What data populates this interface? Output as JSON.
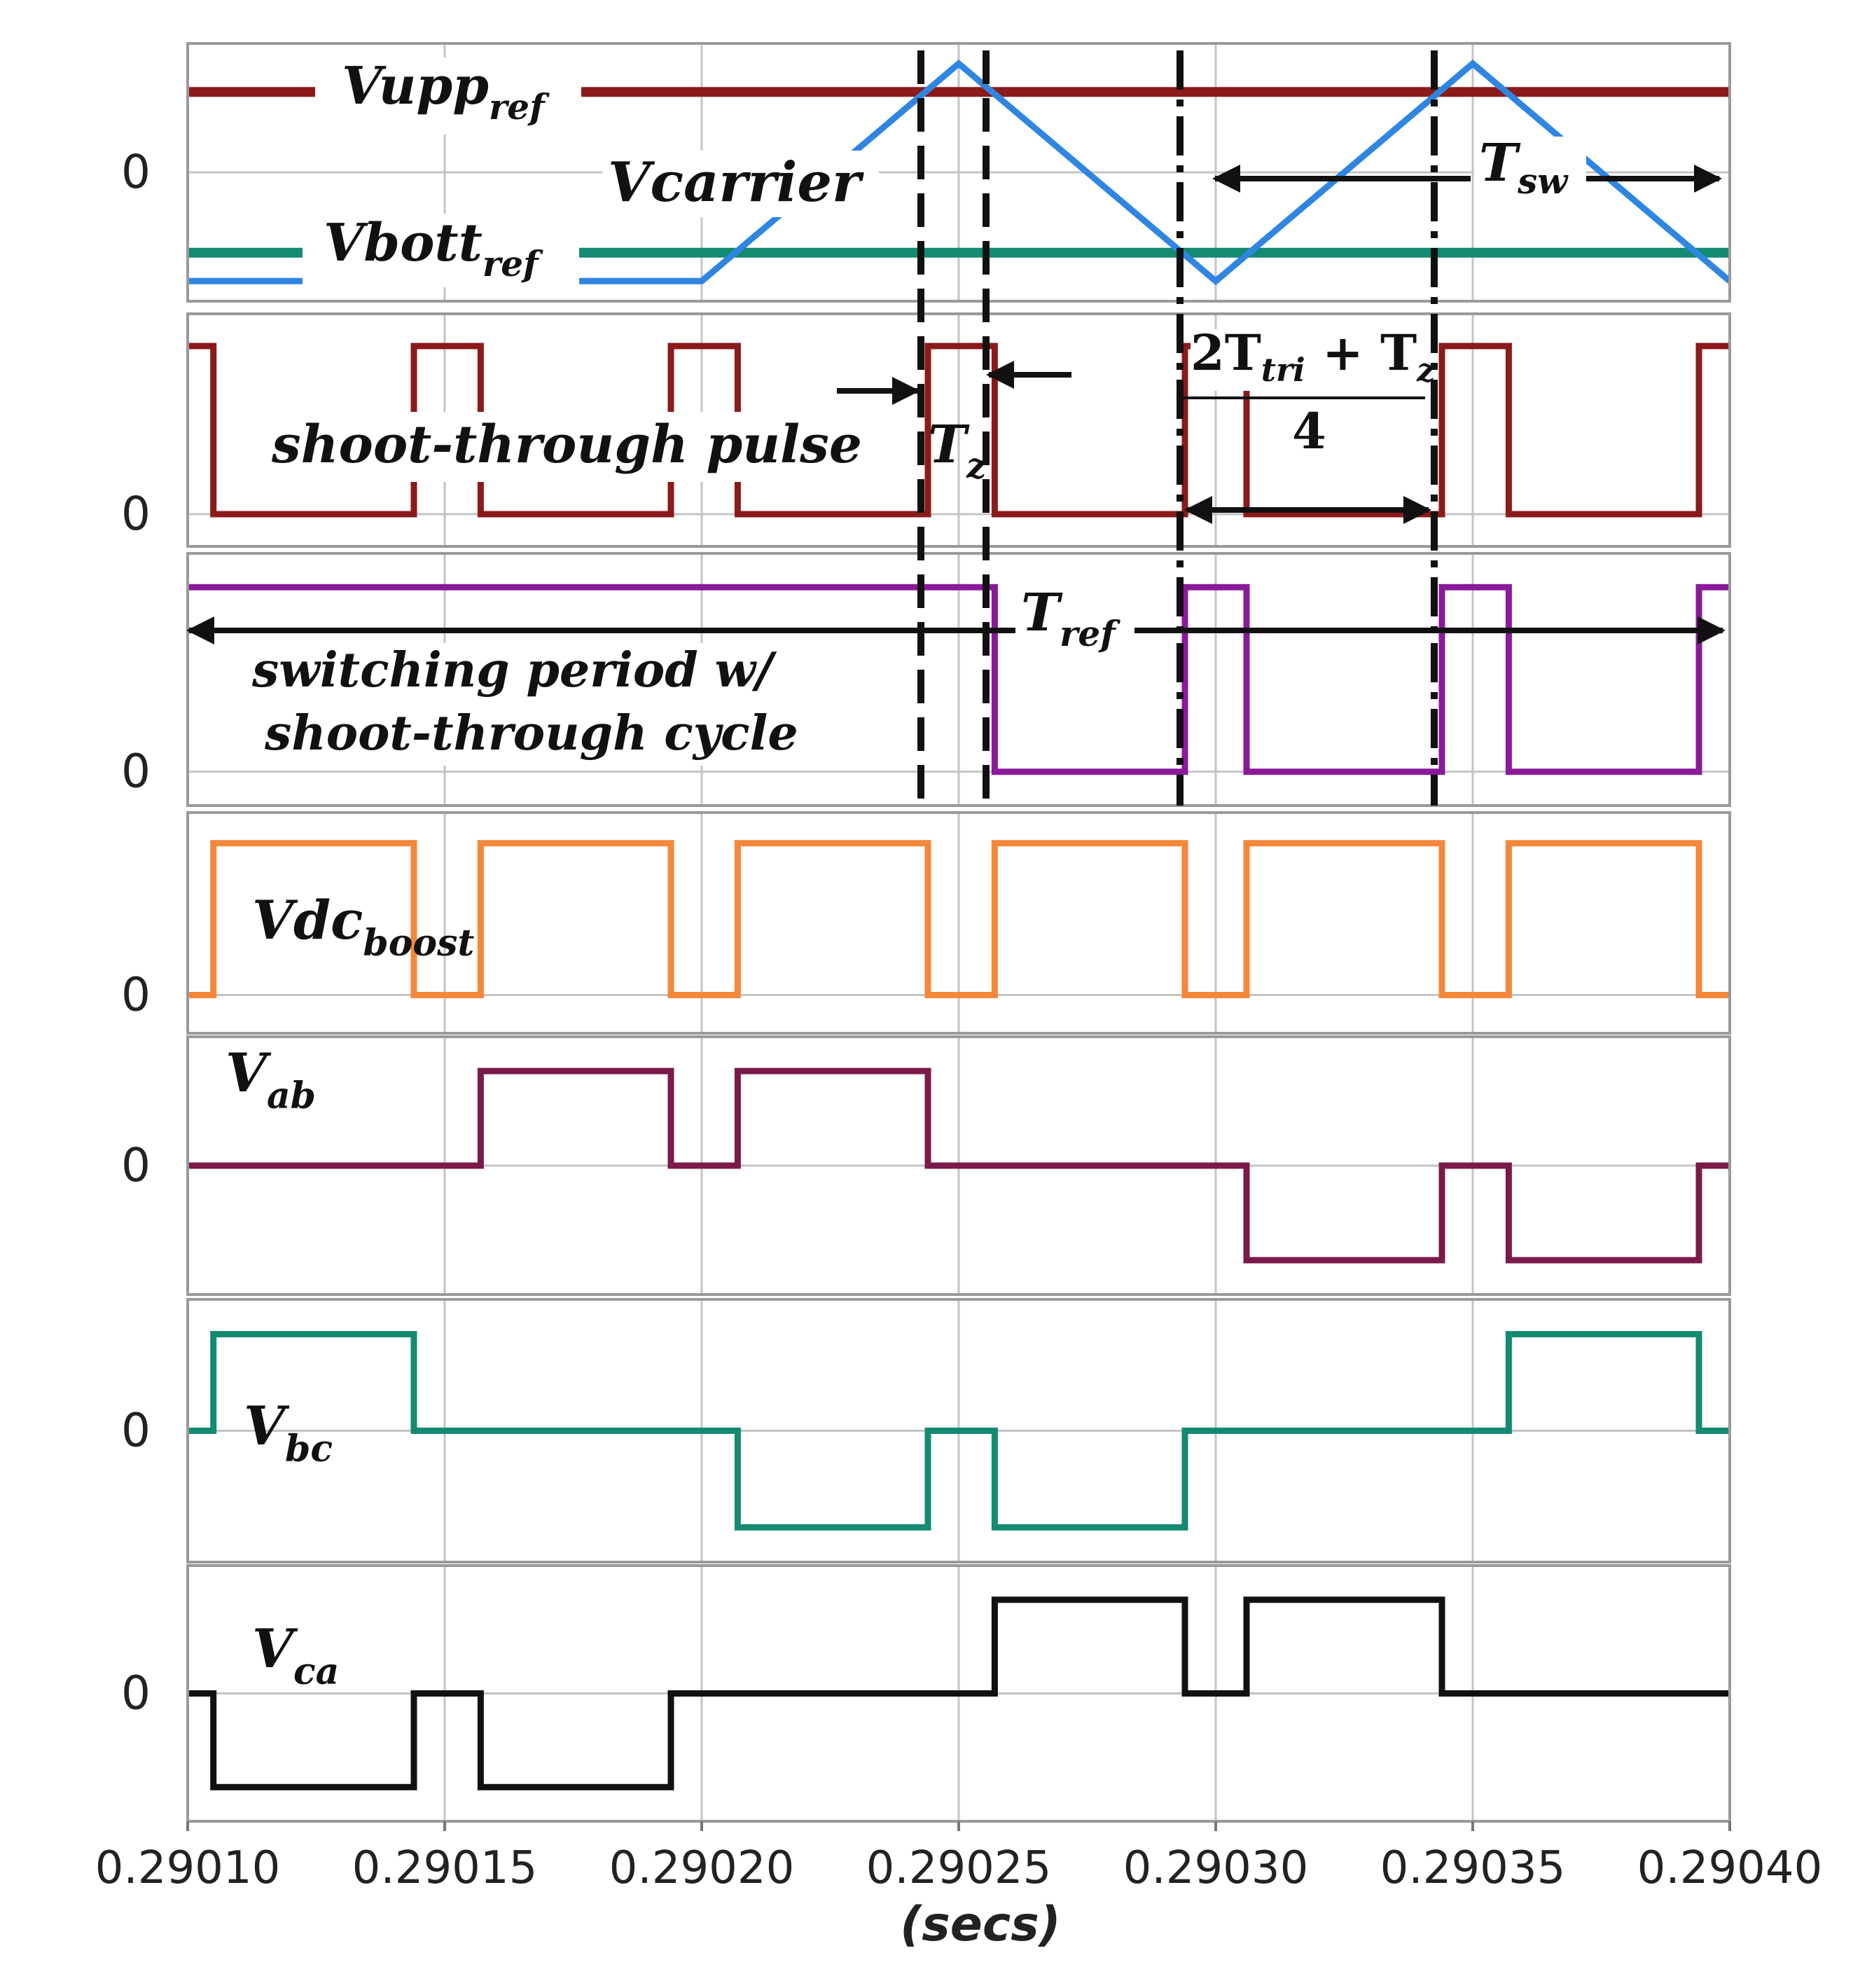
{
  "chart_data": {
    "type": "line",
    "title": "",
    "xlabel": "(secs)",
    "xlim": [
      0.2901,
      0.2904
    ],
    "x_ticks": [
      "0.29010",
      "0.29015",
      "0.29020",
      "0.29025",
      "0.29030",
      "0.29035",
      "0.29040"
    ],
    "x_tick_values": [
      0.2901,
      0.29015,
      0.2902,
      0.29025,
      0.2903,
      0.29035,
      0.2904
    ],
    "zero_label": "0",
    "panels": [
      {
        "name": "carrier-references",
        "ylim": [
          -1.2,
          1.2
        ],
        "series": [
          {
            "name": "Vupp_ref",
            "color": "#8b1a1a",
            "kind": "const",
            "value": 0.85
          },
          {
            "name": "Vbott_ref",
            "color": "#138a72",
            "kind": "const",
            "value": -0.85
          },
          {
            "name": "Vcarrier",
            "color": "#2f86e0",
            "kind": "line",
            "x": [
              0.2901,
              0.2902,
              0.29025,
              0.2903,
              0.29035,
              0.2904
            ],
            "y": [
              -1.15,
              -1.15,
              1.15,
              -1.15,
              1.15,
              -1.15
            ]
          }
        ]
      },
      {
        "name": "shoot-through-pulse",
        "ylim": [
          -0.1,
          1.1
        ],
        "series": [
          {
            "name": "shoot-through pulse",
            "color": "#8b1a1a",
            "kind": "step",
            "x": [
              0.2901,
              0.290105,
              0.290144,
              0.290157,
              0.290194,
              0.290207,
              0.290244,
              0.290257,
              0.290294,
              0.290306,
              0.290344,
              0.290357,
              0.290394,
              0.2904
            ],
            "y": [
              1,
              0,
              1,
              0,
              1,
              0,
              1,
              0,
              1,
              0,
              1,
              0,
              1,
              1
            ]
          }
        ]
      },
      {
        "name": "switching-period",
        "ylim": [
          -0.1,
          1.1
        ],
        "series": [
          {
            "name": "switching period w/ shoot-through cycle",
            "color": "#8b1a9b",
            "kind": "step",
            "x": [
              0.2901,
              0.290257,
              0.290294,
              0.290306,
              0.290344,
              0.290357,
              0.290394,
              0.2904
            ],
            "y": [
              1,
              0,
              1,
              0,
              1,
              0,
              1,
              1
            ]
          }
        ]
      },
      {
        "name": "vdc-boost",
        "ylim": [
          -0.15,
          1.1
        ],
        "series": [
          {
            "name": "Vdc_boost",
            "color": "#f5873a",
            "kind": "step",
            "x": [
              0.2901,
              0.290105,
              0.290144,
              0.290157,
              0.290194,
              0.290207,
              0.290244,
              0.290257,
              0.290294,
              0.290306,
              0.290344,
              0.290357,
              0.290394,
              0.2904
            ],
            "y": [
              0,
              1,
              0,
              1,
              0,
              1,
              0,
              1,
              0,
              1,
              0,
              1,
              0,
              0
            ]
          }
        ]
      },
      {
        "name": "v-ab",
        "ylim": [
          -1.2,
          1.2
        ],
        "series": [
          {
            "name": "V_ab",
            "color": "#7a1a4a",
            "kind": "step",
            "x": [
              0.2901,
              0.290157,
              0.290194,
              0.290207,
              0.290244,
              0.290306,
              0.290344,
              0.290357,
              0.290394,
              0.2904
            ],
            "y": [
              0,
              1,
              0,
              1,
              0,
              -1,
              0,
              -1,
              0,
              0
            ]
          }
        ]
      },
      {
        "name": "v-bc",
        "ylim": [
          -1.2,
          1.2
        ],
        "series": [
          {
            "name": "V_bc",
            "color": "#138a72",
            "kind": "step",
            "x": [
              0.2901,
              0.290105,
              0.290144,
              0.290207,
              0.290244,
              0.290257,
              0.290294,
              0.290357,
              0.290394,
              0.2904
            ],
            "y": [
              0,
              1,
              0,
              -1,
              0,
              -1,
              0,
              1,
              0,
              0
            ]
          }
        ]
      },
      {
        "name": "v-ca",
        "ylim": [
          -1.2,
          1.2
        ],
        "series": [
          {
            "name": "V_ca",
            "color": "#111111",
            "kind": "step",
            "x": [
              0.2901,
              0.290105,
              0.290144,
              0.290157,
              0.290194,
              0.290257,
              0.290294,
              0.290306,
              0.290344,
              0.2904
            ],
            "y": [
              0,
              -1,
              0,
              -1,
              0,
              1,
              0,
              1,
              0,
              0
            ]
          }
        ]
      }
    ],
    "annotations": {
      "vupp": {
        "base": "Vupp",
        "sub": "ref"
      },
      "vcarrier": "Vcarrier",
      "vbott": {
        "base": "Vbott",
        "sub": "ref"
      },
      "tsw": {
        "base": "T",
        "sub": "sw"
      },
      "shoot_pulse": "shoot-through pulse",
      "tz": {
        "base": "T",
        "sub": "z"
      },
      "frac_num": {
        "a": "2T",
        "a_sub": "tri",
        "b": " + T",
        "b_sub": "z"
      },
      "frac_den": "4",
      "tref": {
        "base": "T",
        "sub": "ref"
      },
      "switching_line1": "switching period w/",
      "switching_line2": "shoot-through cycle",
      "vdc": {
        "base": "Vdc",
        "sub": "boost"
      },
      "vab": {
        "base": "V",
        "sub": "ab"
      },
      "vbc": {
        "base": "V",
        "sub": "bc"
      },
      "vca": {
        "base": "V",
        "sub": "ca"
      }
    }
  }
}
